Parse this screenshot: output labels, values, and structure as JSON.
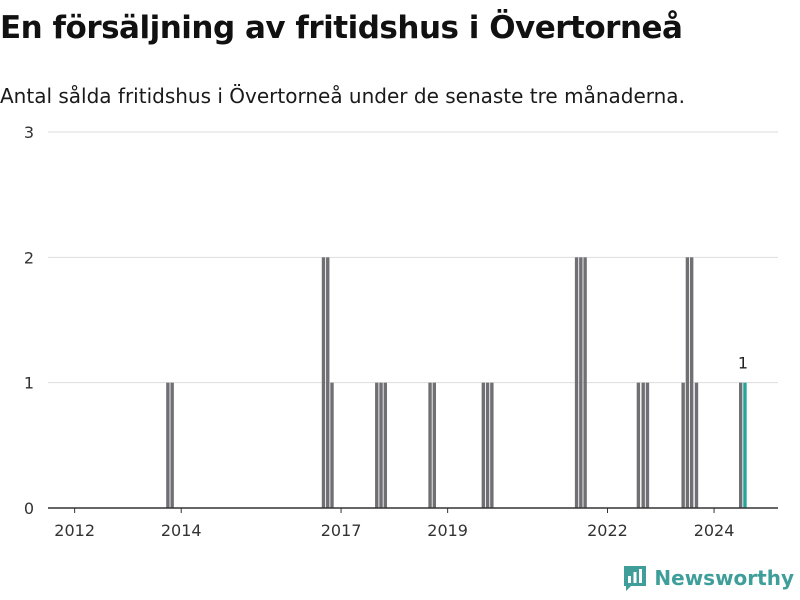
{
  "header": {
    "title": "En försäljning av fritidshus i Övertorneå",
    "subtitle": "Antal sålda fritidshus i Övertorneå under de senaste tre månaderna."
  },
  "brand": {
    "name": "Newsworthy",
    "icon": "bar-chart-logo-icon",
    "color": "#3f9e9a"
  },
  "colors": {
    "bar": "#707074",
    "highlight": "#26a69a",
    "grid": "#dddddd",
    "axis": "#333333"
  },
  "chart_data": {
    "type": "bar",
    "title": "En försäljning av fritidshus i Övertorneå",
    "xlabel": "",
    "ylabel": "",
    "ylim": [
      0,
      3
    ],
    "yticks": [
      0,
      1,
      2,
      3
    ],
    "xlim": [
      2011.5,
      2025.2
    ],
    "xticks": [
      2012,
      2014,
      2017,
      2019,
      2022,
      2024
    ],
    "series": [
      {
        "name": "Antal sålda fritidshus",
        "points": [
          {
            "x": 2013.75,
            "value": 1
          },
          {
            "x": 2013.83,
            "value": 1
          },
          {
            "x": 2016.67,
            "value": 2
          },
          {
            "x": 2016.75,
            "value": 2
          },
          {
            "x": 2016.83,
            "value": 1
          },
          {
            "x": 2017.67,
            "value": 1
          },
          {
            "x": 2017.75,
            "value": 1
          },
          {
            "x": 2017.83,
            "value": 1
          },
          {
            "x": 2018.67,
            "value": 1
          },
          {
            "x": 2018.75,
            "value": 1
          },
          {
            "x": 2019.67,
            "value": 1
          },
          {
            "x": 2019.75,
            "value": 1
          },
          {
            "x": 2019.83,
            "value": 1
          },
          {
            "x": 2021.42,
            "value": 2
          },
          {
            "x": 2021.5,
            "value": 2
          },
          {
            "x": 2021.58,
            "value": 2
          },
          {
            "x": 2022.58,
            "value": 1
          },
          {
            "x": 2022.67,
            "value": 1
          },
          {
            "x": 2022.75,
            "value": 1
          },
          {
            "x": 2023.42,
            "value": 1
          },
          {
            "x": 2023.5,
            "value": 2
          },
          {
            "x": 2023.58,
            "value": 2
          },
          {
            "x": 2023.67,
            "value": 1
          },
          {
            "x": 2024.5,
            "value": 1
          },
          {
            "x": 2024.58,
            "value": 1,
            "highlight": true,
            "label": "1"
          }
        ]
      }
    ]
  }
}
